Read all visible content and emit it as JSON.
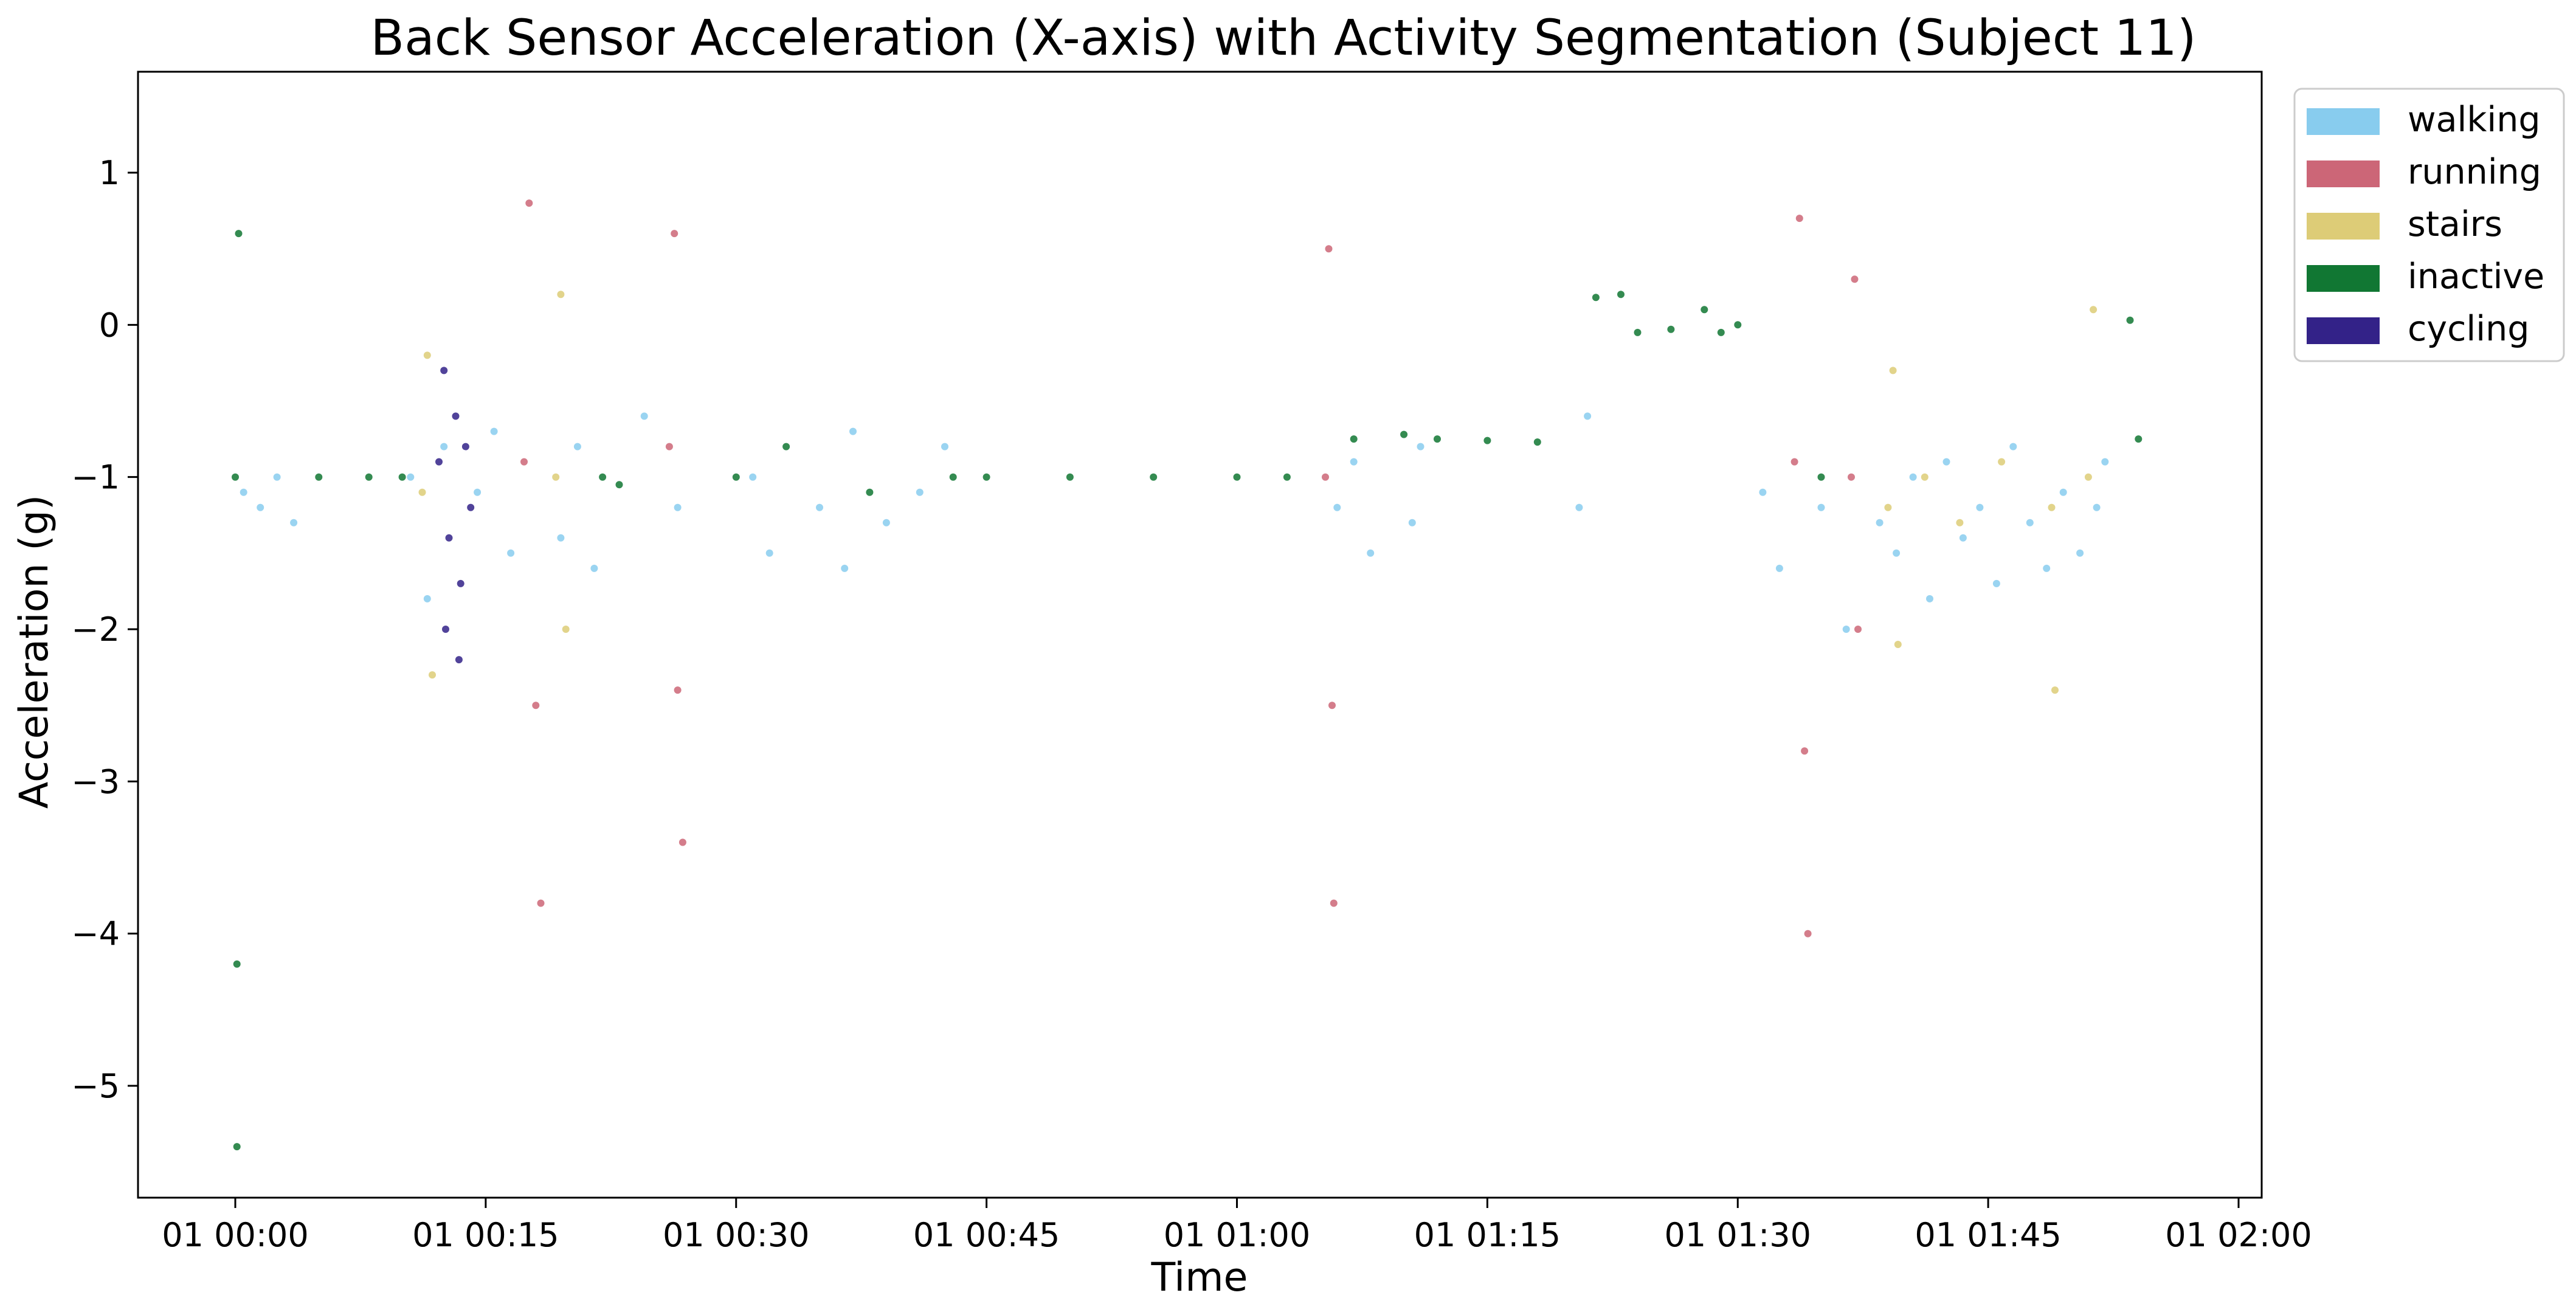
{
  "chart_data": {
    "type": "scatter",
    "title": "Back Sensor Acceleration (X-axis) with Activity Segmentation (Subject 11)",
    "xlabel": "Time",
    "ylabel": "Acceleration (g)",
    "xlim": [
      "01 00:00",
      "01 02:00"
    ],
    "ylim": [
      -5.75,
      1.65
    ],
    "x_ticks": [
      "01 00:00",
      "01 00:15",
      "01 00:30",
      "01 00:45",
      "01 01:00",
      "01 01:15",
      "01 01:30",
      "01 01:45",
      "01 02:00"
    ],
    "x_ticks_minutes": [
      0,
      15,
      30,
      45,
      60,
      75,
      90,
      105,
      120
    ],
    "y_ticks": [
      1,
      0,
      -1,
      -2,
      -3,
      -4,
      -5
    ],
    "y_tick_labels": [
      "1",
      "0",
      "−1",
      "−2",
      "−3",
      "−4",
      "−5"
    ],
    "grid": false,
    "legend_position": "upper right, outside plot",
    "series": [
      {
        "name": "walking",
        "color": "#88CCEE",
        "points": [
          [
            0.5,
            -1.1
          ],
          [
            1.5,
            -1.2
          ],
          [
            2.5,
            -1.0
          ],
          [
            3.5,
            -1.3
          ],
          [
            10.5,
            -1.0
          ],
          [
            11.5,
            -1.8
          ],
          [
            12.5,
            -0.8
          ],
          [
            14.5,
            -1.1
          ],
          [
            15.5,
            -0.7
          ],
          [
            16.5,
            -1.5
          ],
          [
            19.5,
            -1.4
          ],
          [
            20.5,
            -0.8
          ],
          [
            21.5,
            -1.6
          ],
          [
            24.5,
            -0.6
          ],
          [
            26.5,
            -1.2
          ],
          [
            31,
            -1.0
          ],
          [
            32,
            -1.5
          ],
          [
            35,
            -1.2
          ],
          [
            36.5,
            -1.6
          ],
          [
            37,
            -0.7
          ],
          [
            39,
            -1.3
          ],
          [
            41,
            -1.1
          ],
          [
            42.5,
            -0.8
          ],
          [
            66,
            -1.2
          ],
          [
            67,
            -0.9
          ],
          [
            68,
            -1.5
          ],
          [
            70.5,
            -1.3
          ],
          [
            71,
            -0.8
          ],
          [
            80.5,
            -1.2
          ],
          [
            81,
            -0.6
          ],
          [
            91.5,
            -1.1
          ],
          [
            92.5,
            -1.6
          ],
          [
            95,
            -1.2
          ],
          [
            96.5,
            -2.0
          ],
          [
            98.5,
            -1.3
          ],
          [
            99.5,
            -1.5
          ],
          [
            100.5,
            -1.0
          ],
          [
            101.5,
            -1.8
          ],
          [
            102.5,
            -0.9
          ],
          [
            103.5,
            -1.4
          ],
          [
            104.5,
            -1.2
          ],
          [
            105.5,
            -1.7
          ],
          [
            106.5,
            -0.8
          ],
          [
            107.5,
            -1.3
          ],
          [
            108.5,
            -1.6
          ],
          [
            109.5,
            -1.1
          ],
          [
            110.5,
            -1.5
          ],
          [
            111.5,
            -1.2
          ],
          [
            112,
            -0.9
          ]
        ]
      },
      {
        "name": "running",
        "color": "#CC6677",
        "points": [
          [
            17.3,
            -0.9
          ],
          [
            17.6,
            0.8
          ],
          [
            18.0,
            -2.5
          ],
          [
            18.3,
            -3.8
          ],
          [
            26.0,
            -0.8
          ],
          [
            26.3,
            0.6
          ],
          [
            26.5,
            -2.4
          ],
          [
            26.8,
            -3.4
          ],
          [
            65.3,
            -1.0
          ],
          [
            65.5,
            0.5
          ],
          [
            65.7,
            -2.5
          ],
          [
            65.8,
            -3.8
          ],
          [
            93.4,
            -0.9
          ],
          [
            93.7,
            0.7
          ],
          [
            94.0,
            -2.8
          ],
          [
            94.2,
            -4.0
          ],
          [
            96.8,
            -1.0
          ],
          [
            97.0,
            0.3
          ],
          [
            97.2,
            -2.0
          ]
        ]
      },
      {
        "name": "stairs",
        "color": "#DDCC77",
        "points": [
          [
            11.2,
            -1.1
          ],
          [
            11.5,
            -0.2
          ],
          [
            11.8,
            -2.3
          ],
          [
            19.2,
            -1.0
          ],
          [
            19.5,
            0.2
          ],
          [
            19.8,
            -2.0
          ],
          [
            99.0,
            -1.2
          ],
          [
            99.3,
            -0.3
          ],
          [
            99.6,
            -2.1
          ],
          [
            101.2,
            -1.0
          ],
          [
            103.3,
            -1.3
          ],
          [
            105.8,
            -0.9
          ],
          [
            108.8,
            -1.2
          ],
          [
            109.0,
            -2.4
          ],
          [
            111.0,
            -1.0
          ],
          [
            111.3,
            0.1
          ]
        ]
      },
      {
        "name": "inactive",
        "color": "#117733",
        "points": [
          [
            0,
            -1.0
          ],
          [
            0.2,
            0.6
          ],
          [
            0.1,
            -4.2
          ],
          [
            0.1,
            -5.4
          ],
          [
            5,
            -1.0
          ],
          [
            8,
            -1.0
          ],
          [
            10,
            -1.0
          ],
          [
            22,
            -1.0
          ],
          [
            23,
            -1.05
          ],
          [
            30,
            -1.0
          ],
          [
            33,
            -0.8
          ],
          [
            38,
            -1.1
          ],
          [
            43,
            -1.0
          ],
          [
            45,
            -1.0
          ],
          [
            50,
            -1.0
          ],
          [
            55,
            -1.0
          ],
          [
            60,
            -1.0
          ],
          [
            63,
            -1.0
          ],
          [
            67,
            -0.75
          ],
          [
            70,
            -0.72
          ],
          [
            72,
            -0.75
          ],
          [
            75,
            -0.76
          ],
          [
            78,
            -0.77
          ],
          [
            81.5,
            0.18
          ],
          [
            83,
            0.2
          ],
          [
            84,
            -0.05
          ],
          [
            86,
            -0.03
          ],
          [
            88,
            0.1
          ],
          [
            89,
            -0.05
          ],
          [
            90,
            0.0
          ],
          [
            95,
            -1.0
          ],
          [
            113.5,
            0.03
          ],
          [
            114,
            -0.75
          ]
        ]
      },
      {
        "name": "cycling",
        "color": "#332288",
        "points": [
          [
            12.2,
            -0.9
          ],
          [
            12.5,
            -0.3
          ],
          [
            12.8,
            -1.4
          ],
          [
            13.2,
            -0.6
          ],
          [
            13.5,
            -1.7
          ],
          [
            13.8,
            -0.8
          ],
          [
            14.1,
            -1.2
          ],
          [
            12.6,
            -2.0
          ],
          [
            13.4,
            -2.2
          ]
        ]
      }
    ]
  }
}
